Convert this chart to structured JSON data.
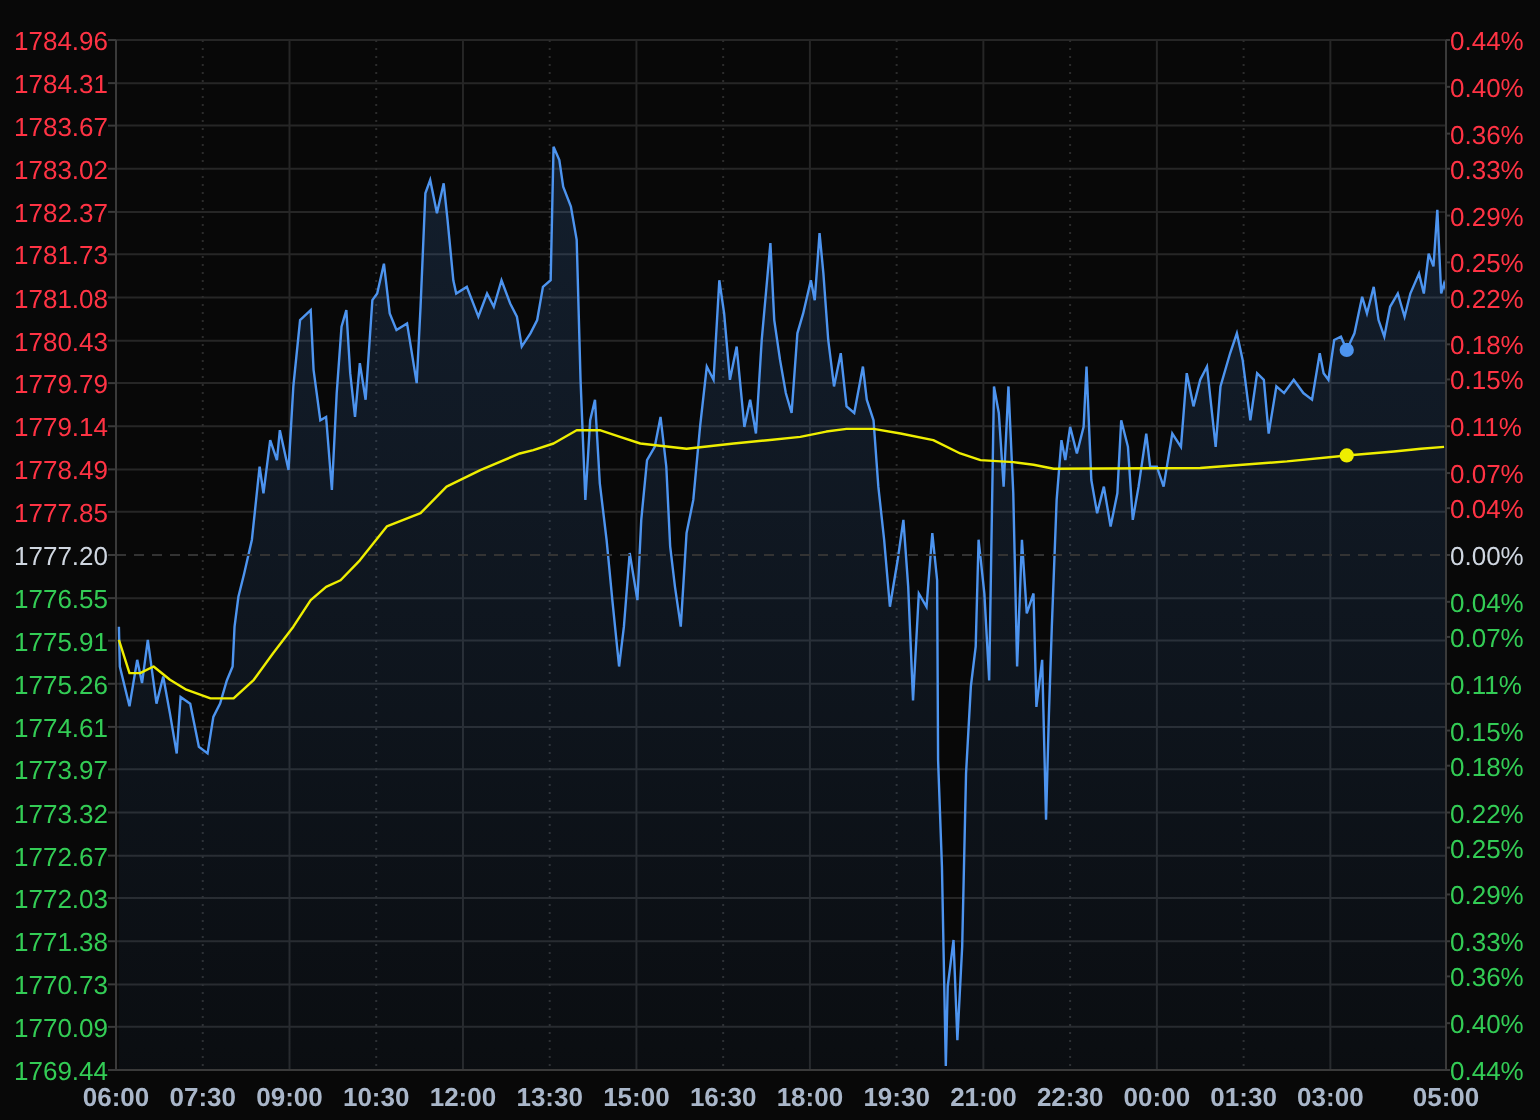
{
  "chart_data": {
    "type": "line",
    "xlim": [
      "--01-01T06:00",
      "--01-02T05:00"
    ],
    "xticks": [
      {
        "value": "--01-01T06:00",
        "label": "06:00"
      },
      {
        "value": "--01-01T07:30",
        "label": "07:30"
      },
      {
        "value": "--01-01T09:00",
        "label": "09:00"
      },
      {
        "value": "--01-01T10:30",
        "label": "10:30"
      },
      {
        "value": "--01-01T12:00",
        "label": "12:00"
      },
      {
        "value": "--01-01T13:30",
        "label": "13:30"
      },
      {
        "value": "--01-01T15:00",
        "label": "15:00"
      },
      {
        "value": "--01-01T16:30",
        "label": "16:30"
      },
      {
        "value": "--01-01T18:00",
        "label": "18:00"
      },
      {
        "value": "--01-01T19:30",
        "label": "19:30"
      },
      {
        "value": "--01-01T21:00",
        "label": "21:00"
      },
      {
        "value": "--01-01T22:30",
        "label": "22:30"
      },
      {
        "value": "--01-02T00:00",
        "label": "00:00"
      },
      {
        "value": "--01-02T01:30",
        "label": "01:30"
      },
      {
        "value": "--01-02T03:00",
        "label": "03:00"
      },
      {
        "value": "--01-02T05:00",
        "label": "05:00"
      }
    ],
    "ylim": [
      1769.44,
      1784.96
    ],
    "yticks": [
      1784.96,
      1784.31,
      1783.67,
      1783.02,
      1782.37,
      1781.73,
      1781.08,
      1780.43,
      1779.79,
      1779.14,
      1778.49,
      1777.85,
      {
        "value": 1777.2,
        "label": "1777.20"
      },
      1776.55,
      1775.91,
      1775.26,
      1774.61,
      1773.97,
      1773.32,
      1772.67,
      1772.03,
      1771.38,
      1770.73,
      1770.09,
      1769.44
    ],
    "y2lim": [
      -0.44,
      0.44
    ],
    "y2ticks": [
      {
        "value": 0.44,
        "label": "0.44%"
      },
      {
        "value": 0.4,
        "label": "0.40%"
      },
      {
        "value": 0.36,
        "label": "0.36%"
      },
      {
        "value": 0.33,
        "label": "0.33%"
      },
      {
        "value": 0.29,
        "label": "0.29%"
      },
      {
        "value": 0.25,
        "label": "0.25%"
      },
      {
        "value": 0.22,
        "label": "0.22%"
      },
      {
        "value": 0.18,
        "label": "0.18%"
      },
      {
        "value": 0.15,
        "label": "0.15%"
      },
      {
        "value": 0.11,
        "label": "0.11%"
      },
      {
        "value": 0.07,
        "label": "0.07%"
      },
      {
        "value": 0.04,
        "label": "0.04%"
      },
      {
        "value": 0,
        "label": "0.00%"
      },
      {
        "value": -0.04,
        "label": "0.04%"
      },
      {
        "value": -0.07,
        "label": "0.07%"
      },
      {
        "value": -0.11,
        "label": "0.11%"
      },
      {
        "value": -0.15,
        "label": "0.15%"
      },
      {
        "value": -0.18,
        "label": "0.18%"
      },
      {
        "value": -0.22,
        "label": "0.22%"
      },
      {
        "value": -0.25,
        "label": "0.25%"
      },
      {
        "value": -0.29,
        "label": "0.29%"
      },
      {
        "value": -0.33,
        "label": "0.33%"
      },
      {
        "value": -0.36,
        "label": "0.36%"
      },
      {
        "value": -0.4,
        "label": "0.40%"
      },
      {
        "value": -0.44,
        "label": "0.44%"
      }
    ],
    "grid": true,
    "ref_lines": [
      {
        "axis": "y",
        "value": 1777.2,
        "line_style": "dashed",
        "color": "#333333"
      }
    ],
    "series": [
      {
        "type": "area",
        "color": "#4d94ef",
        "x": [
          "--01-01T06:03",
          "--01-01T06:04",
          "--01-01T06:14",
          "--01-01T06:22",
          "--01-01T06:27",
          "--01-01T06:33",
          "--01-01T06:42",
          "--01-01T06:49",
          "--01-01T06:56",
          "--01-01T07:03",
          "--01-01T07:07",
          "--01-01T07:17",
          "--01-01T07:26",
          "--01-01T07:35",
          "--01-01T07:41",
          "--01-01T07:48",
          "--01-01T07:55",
          "--01-01T08:01",
          "--01-01T08:03",
          "--01-01T08:07",
          "--01-01T08:13",
          "--01-01T08:21",
          "--01-01T08:29",
          "--01-01T08:33",
          "--01-01T08:40",
          "--01-01T08:47",
          "--01-01T08:50",
          "--01-01T08:59",
          "--01-01T09:04",
          "--01-01T09:11",
          "--01-01T09:22",
          "--01-01T09:25",
          "--01-01T09:32",
          "--01-01T09:38",
          "--01-01T09:44",
          "--01-01T09:49",
          "--01-01T09:54",
          "--01-01T09:59",
          "--01-01T10:03",
          "--01-01T10:08",
          "--01-01T10:13",
          "--01-01T10:19",
          "--01-01T10:26",
          "--01-01T10:31",
          "--01-01T10:38",
          "--01-01T10:44",
          "--01-01T10:51",
          "--01-01T11:02",
          "--01-01T11:12",
          "--01-01T11:16",
          "--01-01T11:21",
          "--01-01T11:26",
          "--01-01T11:33",
          "--01-01T11:40",
          "--01-01T11:44",
          "--01-01T11:50",
          "--01-01T11:53",
          "--01-01T12:04",
          "--01-01T12:16",
          "--01-01T12:25",
          "--01-01T12:32",
          "--01-01T12:40",
          "--01-01T12:49",
          "--01-01T12:56",
          "--01-01T13:01",
          "--01-01T13:10",
          "--01-01T13:17",
          "--01-01T13:23",
          "--01-01T13:31",
          "--01-01T13:34",
          "--01-01T13:40",
          "--01-01T13:44",
          "--01-01T13:52",
          "--01-01T13:58",
          "--01-01T14:02",
          "--01-01T14:07",
          "--01-01T14:12",
          "--01-01T14:17",
          "--01-01T14:22",
          "--01-01T14:29",
          "--01-01T14:35",
          "--01-01T14:42",
          "--01-01T14:47",
          "--01-01T14:53",
          "--01-01T15:01",
          "--01-01T15:05",
          "--01-01T15:11",
          "--01-01T15:19",
          "--01-01T15:25",
          "--01-01T15:31",
          "--01-01T15:35",
          "--01-01T15:40",
          "--01-01T15:46",
          "--01-01T15:52",
          "--01-01T15:59",
          "--01-01T16:06",
          "--01-01T16:13",
          "--01-01T16:20",
          "--01-01T16:26",
          "--01-01T16:31",
          "--01-01T16:37",
          "--01-01T16:44",
          "--01-01T16:52",
          "--01-01T16:58",
          "--01-01T17:04",
          "--01-01T17:10",
          "--01-01T17:19",
          "--01-01T17:23",
          "--01-01T17:29",
          "--01-01T17:35",
          "--01-01T17:41",
          "--01-01T17:47",
          "--01-01T17:53",
          "--01-01T18:01",
          "--01-01T18:05",
          "--01-01T18:10",
          "--01-01T18:14",
          "--01-01T18:19",
          "--01-01T18:25",
          "--01-01T18:32",
          "--01-01T18:38",
          "--01-01T18:46",
          "--01-01T18:55",
          "--01-01T18:59",
          "--01-01T19:06",
          "--01-01T19:11",
          "--01-01T19:17",
          "--01-01T19:23",
          "--01-01T19:31",
          "--01-01T19:37",
          "--01-01T19:42",
          "--01-01T19:47",
          "--01-01T19:53",
          "--01-01T20:01",
          "--01-01T20:07",
          "--01-01T20:12",
          "--01-01T20:13",
          "--01-01T20:17",
          "--01-01T20:21",
          "--01-01T20:23",
          "--01-01T20:29",
          "--01-01T20:33",
          "--01-01T20:38",
          "--01-01T20:42",
          "--01-01T20:47",
          "--01-01T20:52",
          "--01-01T20:55",
          "--01-01T21:01",
          "--01-01T21:06",
          "--01-01T21:11",
          "--01-01T21:16",
          "--01-01T21:21",
          "--01-01T21:26",
          "--01-01T21:31",
          "--01-01T21:35",
          "--01-01T21:40",
          "--01-01T21:45",
          "--01-01T21:52",
          "--01-01T21:55",
          "--01-01T22:01",
          "--01-01T22:05",
          "--01-01T22:08",
          "--01-01T22:11",
          "--01-01T22:16",
          "--01-01T22:21",
          "--01-01T22:25",
          "--01-01T22:30",
          "--01-01T22:37",
          "--01-01T22:44",
          "--01-01T22:47",
          "--01-01T22:52",
          "--01-01T22:58",
          "--01-01T23:05",
          "--01-01T23:12",
          "--01-01T23:19",
          "--01-01T23:23",
          "--01-01T23:30",
          "--01-01T23:35",
          "--01-01T23:41",
          "--01-01T23:49",
          "--01-01T23:53",
          "--01-02T00:00",
          "--01-02T00:07",
          "--01-02T00:16",
          "--01-02T00:25",
          "--01-02T00:31",
          "--01-02T00:38",
          "--01-02T00:45",
          "--01-02T00:52",
          "--01-02T01:01",
          "--01-02T01:06",
          "--01-02T01:16",
          "--01-02T01:23",
          "--01-02T01:29",
          "--01-02T01:37",
          "--01-02T01:44",
          "--01-02T01:51",
          "--01-02T01:56",
          "--01-02T02:04",
          "--01-02T02:12",
          "--01-02T02:22",
          "--01-02T02:32",
          "--01-02T02:41",
          "--01-02T02:49",
          "--01-02T02:53",
          "--01-02T02:58",
          "--01-02T03:04",
          "--01-02T03:11",
          "--01-02T03:17",
          "--01-02T03:25",
          "--01-02T03:33",
          "--01-02T03:38",
          "--01-02T03:45",
          "--01-02T03:50",
          "--01-02T03:56",
          "--01-02T04:02",
          "--01-02T04:10",
          "--01-02T04:17",
          "--01-02T04:23",
          "--01-02T04:32",
          "--01-02T04:37",
          "--01-02T04:42",
          "--01-02T04:47",
          "--01-02T04:51",
          "--01-02T04:55",
          "--01-02T04:58",
          "--01-02T05:00"
        ],
        "values": [
          1776.12,
          1775.52,
          1774.92,
          1775.62,
          1775.27,
          1775.92,
          1774.96,
          1775.37,
          1774.81,
          1774.21,
          1775.06,
          1774.96,
          1774.31,
          1774.21,
          1774.76,
          1774.96,
          1775.31,
          1775.52,
          1776.12,
          1776.57,
          1776.92,
          1777.43,
          1778.53,
          1778.13,
          1778.93,
          1778.63,
          1779.08,
          1778.48,
          1779.74,
          1780.74,
          1780.89,
          1779.99,
          1779.23,
          1779.28,
          1778.18,
          1779.64,
          1780.64,
          1780.89,
          1779.94,
          1779.28,
          1780.09,
          1779.54,
          1781.04,
          1781.14,
          1781.59,
          1780.84,
          1780.59,
          1780.69,
          1779.79,
          1780.94,
          1782.65,
          1782.85,
          1782.35,
          1782.8,
          1782.25,
          1781.34,
          1781.14,
          1781.24,
          1780.79,
          1781.14,
          1780.94,
          1781.34,
          1780.99,
          1780.79,
          1780.34,
          1780.54,
          1780.74,
          1781.24,
          1781.34,
          1783.35,
          1783.15,
          1782.75,
          1782.45,
          1781.95,
          1779.84,
          1778.03,
          1779.23,
          1779.54,
          1778.28,
          1777.43,
          1776.52,
          1775.52,
          1776.12,
          1777.23,
          1776.52,
          1777.73,
          1778.63,
          1778.83,
          1779.28,
          1778.53,
          1777.33,
          1776.72,
          1776.12,
          1777.53,
          1778.03,
          1779.13,
          1780.04,
          1779.84,
          1781.34,
          1780.84,
          1779.84,
          1780.34,
          1779.13,
          1779.54,
          1779.03,
          1780.44,
          1781.9,
          1780.74,
          1780.14,
          1779.64,
          1779.34,
          1780.54,
          1780.84,
          1781.34,
          1781.04,
          1782.05,
          1781.44,
          1780.44,
          1779.74,
          1780.24,
          1779.44,
          1779.34,
          1780.04,
          1779.54,
          1779.23,
          1778.23,
          1777.43,
          1776.42,
          1777.12,
          1777.73,
          1776.72,
          1775.01,
          1776.62,
          1776.42,
          1777.53,
          1776.82,
          1774.11,
          1772.5,
          1769.5,
          1770.7,
          1771.4,
          1769.89,
          1771.3,
          1773.91,
          1775.22,
          1775.82,
          1777.43,
          1776.62,
          1775.31,
          1779.74,
          1779.34,
          1778.23,
          1779.74,
          1778.13,
          1775.52,
          1777.43,
          1776.32,
          1776.62,
          1774.91,
          1775.62,
          1773.21,
          1774.81,
          1776.12,
          1778.03,
          1778.93,
          1778.63,
          1779.13,
          1778.73,
          1779.13,
          1780.04,
          1778.33,
          1777.83,
          1778.23,
          1777.63,
          1778.13,
          1779.23,
          1778.83,
          1777.73,
          1778.23,
          1779.03,
          1778.53,
          1778.53,
          1778.23,
          1779.03,
          1778.83,
          1779.94,
          1779.44,
          1779.84,
          1780.04,
          1778.83,
          1779.74,
          1780.24,
          1780.54,
          1780.14,
          1779.23,
          1779.94,
          1779.84,
          1779.03,
          1779.74,
          1779.64,
          1779.84,
          1779.64,
          1779.54,
          1780.24,
          1779.94,
          1779.84,
          1780.44,
          1780.49,
          1780.29,
          1780.54,
          1781.09,
          1780.84,
          1781.24,
          1780.74,
          1780.49,
          1780.94,
          1781.14,
          1780.79,
          1781.14,
          1781.44,
          1781.14,
          1781.74,
          1781.55,
          1782.4,
          1781.14,
          1781.29,
          1781.19
        ]
      },
      {
        "type": "line",
        "color": "#eeee00",
        "x": [
          "--01-01T06:03",
          "--01-01T06:14",
          "--01-01T06:25",
          "--01-01T06:39",
          "--01-01T06:56",
          "--01-01T07:13",
          "--01-01T07:38",
          "--01-01T08:02",
          "--01-01T08:23",
          "--01-01T08:43",
          "--01-01T09:04",
          "--01-01T09:22",
          "--01-01T09:38",
          "--01-01T09:53",
          "--01-01T10:13",
          "--01-01T10:41",
          "--01-01T11:16",
          "--01-01T11:43",
          "--01-01T12:18",
          "--01-01T12:59",
          "--01-01T13:13",
          "--01-01T13:34",
          "--01-01T13:58",
          "--01-01T14:22",
          "--01-01T14:43",
          "--01-01T15:04",
          "--01-01T15:52",
          "--01-01T16:41",
          "--01-01T17:16",
          "--01-01T17:50",
          "--01-01T18:17",
          "--01-01T18:38",
          "--01-01T19:06",
          "--01-01T19:34",
          "--01-01T20:08",
          "--01-01T20:36",
          "--01-01T20:57",
          "--01-01T21:31",
          "--01-01T21:52",
          "--01-01T22:13",
          "--01-02T00:45",
          "--01-02T02:15",
          "--01-02T03:17",
          "--01-02T04:06",
          "--01-02T04:34",
          "--01-02T04:58"
        ],
        "values": [
          1775.92,
          1775.42,
          1775.42,
          1775.52,
          1775.32,
          1775.17,
          1775.04,
          1775.04,
          1775.32,
          1775.72,
          1776.12,
          1776.52,
          1776.72,
          1776.82,
          1777.12,
          1777.63,
          1777.83,
          1778.23,
          1778.48,
          1778.73,
          1778.78,
          1778.88,
          1779.08,
          1779.08,
          1778.98,
          1778.88,
          1778.8,
          1778.88,
          1778.93,
          1778.98,
          1779.06,
          1779.1,
          1779.1,
          1779.03,
          1778.93,
          1778.73,
          1778.63,
          1778.6,
          1778.56,
          1778.5,
          1778.51,
          1778.61,
          1778.7,
          1778.76,
          1778.8,
          1778.83
        ]
      },
      {
        "type": "scatter",
        "color": "#4d94ef",
        "x": [
          "--01-02T03:17"
        ],
        "values": [
          1780.29
        ]
      },
      {
        "type": "scatter",
        "color": "#eeee00",
        "x": [
          "--01-02T03:17"
        ],
        "values": [
          1778.7
        ]
      }
    ]
  }
}
